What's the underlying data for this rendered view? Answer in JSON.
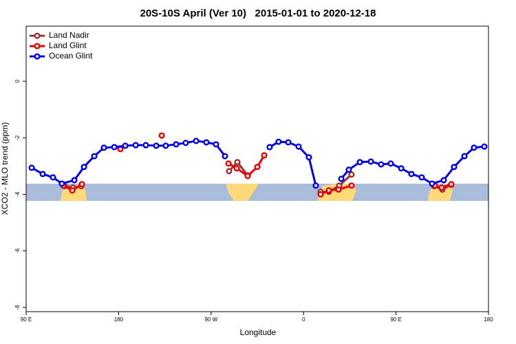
{
  "chart_data": {
    "type": "line",
    "title": "20S-10S April (Ver 10)   2015-01-01 to 2020-12-18",
    "x_label": "Longitude",
    "y_label": "XCO2 - MLO trend (ppm)",
    "xlim": [
      90,
      540
    ],
    "ylim": [
      -8.15,
      1.95
    ],
    "xticks": [
      {
        "value": 90,
        "label": "90 E"
      },
      180,
      {
        "value": 270,
        "label": "90 W"
      },
      {
        "value": 360,
        "label": "0"
      },
      {
        "value": 450,
        "label": "90 E"
      },
      {
        "value": 540,
        "label": "180"
      }
    ],
    "yticks": [
      0,
      -2,
      -4,
      -6,
      -8
    ],
    "legend": "top-left",
    "series": [
      {
        "name": "Land Nadir",
        "color": "#993333",
        "x": [
          127.5,
          135.5,
          143.6,
          200,
          287.5,
          295.6,
          305.6,
          340,
          376.6,
          384.6,
          394.7,
          406.7,
          450,
          487.1,
          495.1,
          503.8
        ],
        "values": [
          -3.71,
          -3.76,
          -3.71,
          null,
          -3.18,
          -2.86,
          -3.33,
          null,
          -3.91,
          -3.91,
          -3.69,
          -3.3,
          null,
          -3.71,
          -3.83,
          -3.66
        ]
      },
      {
        "name": "Land Glint",
        "color": "#ee0000",
        "x": [
          126.2,
          134.9,
          144.2,
          160,
          181.7,
          200,
          221.9,
          250,
          286.9,
          294.9,
          305.6,
          315,
          321.7,
          340,
          376.6,
          384.6,
          394,
          406.7,
          450,
          487.7,
          494.4,
          503.8
        ],
        "values": [
          -3.69,
          -3.86,
          -3.64,
          null,
          -2.4,
          null,
          -1.92,
          null,
          -2.91,
          -3.08,
          -3.35,
          -3.03,
          -2.62,
          null,
          -4.0,
          -3.86,
          -3.83,
          -3.69,
          null,
          -3.69,
          -3.76,
          -3.64
        ]
      },
      {
        "name": "Ocean Glint",
        "color": "#0000ee",
        "x": [
          95.4,
          106.1,
          116.1,
          124.8,
          136.9,
          146.3,
          156.3,
          165.7,
          175.8,
          186.5,
          196.6,
          206.5,
          216.6,
          225.9,
          236,
          245.3,
          255.4,
          265.4,
          274.8,
          283.5,
          305,
          327,
          335.7,
          345.1,
          355.2,
          365.2,
          371.9,
          385,
          396.7,
          404,
          414.8,
          425.5,
          435.5,
          444.9,
          455,
          465,
          475,
          485.1,
          496.4,
          506.5,
          516.6,
          525.9,
          536
        ],
        "values": [
          -3.06,
          -3.28,
          -3.4,
          -3.62,
          -3.5,
          -3.03,
          -2.65,
          -2.35,
          -2.33,
          -2.28,
          -2.26,
          -2.26,
          -2.28,
          -2.28,
          -2.23,
          -2.18,
          -2.11,
          -2.16,
          -2.23,
          -2.65,
          null,
          -2.33,
          -2.14,
          -2.16,
          -2.31,
          -2.69,
          -3.69,
          null,
          -3.45,
          -3.13,
          -2.86,
          -2.84,
          -2.94,
          -2.91,
          -3.08,
          -3.28,
          -3.4,
          -3.62,
          -3.5,
          -3.03,
          -2.65,
          -2.35,
          -2.31
        ]
      }
    ]
  }
}
